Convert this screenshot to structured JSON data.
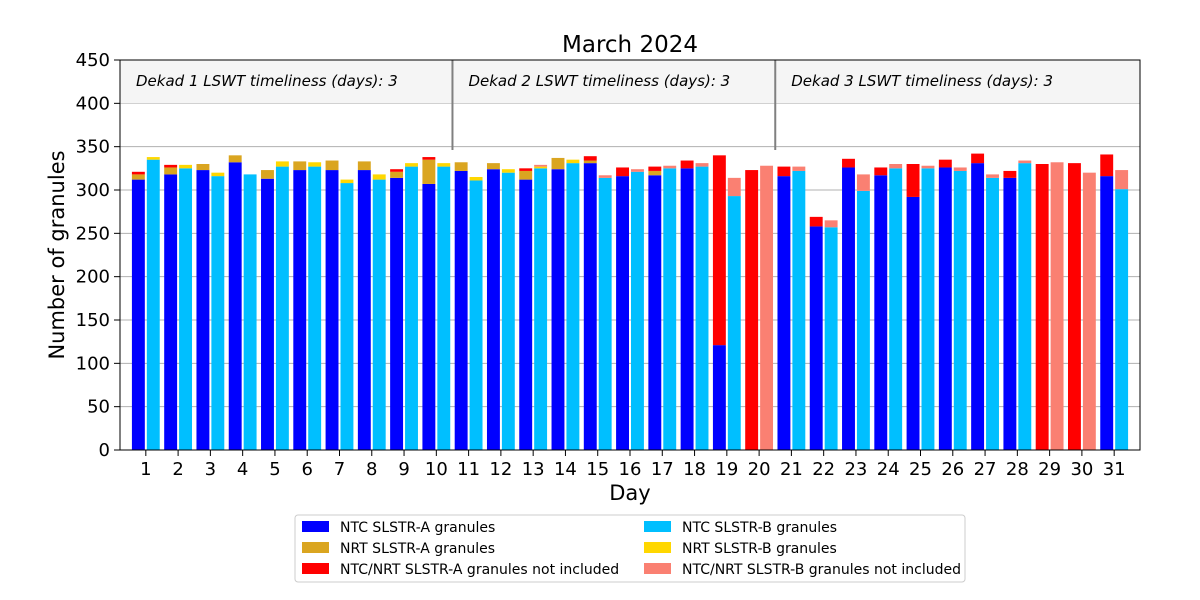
{
  "chart_data": {
    "type": "bar",
    "title": "March 2024",
    "xlabel": "Day",
    "ylabel": "Number of granules",
    "ylim": [
      0,
      450
    ],
    "yticks": [
      0,
      50,
      100,
      150,
      200,
      250,
      300,
      350,
      400,
      450
    ],
    "grid": true,
    "legend_position": "bottom",
    "categories": [
      "1",
      "2",
      "3",
      "4",
      "5",
      "6",
      "7",
      "8",
      "9",
      "10",
      "11",
      "12",
      "13",
      "14",
      "15",
      "16",
      "17",
      "18",
      "19",
      "20",
      "21",
      "22",
      "23",
      "24",
      "25",
      "26",
      "27",
      "28",
      "29",
      "30",
      "31"
    ],
    "dekads": [
      {
        "label": "Dekad 1 LSWT timeliness (days): 3",
        "start_day": 1,
        "end_day": 10
      },
      {
        "label": "Dekad 2 LSWT timeliness (days): 3",
        "start_day": 11,
        "end_day": 20
      },
      {
        "label": "Dekad 3 LSWT timeliness (days): 3",
        "start_day": 21,
        "end_day": 31
      }
    ],
    "series": [
      {
        "name": "NTC SLSTR-A granules",
        "group": "A",
        "color": "#0000ff",
        "values": [
          312,
          318,
          323,
          332,
          313,
          323,
          323,
          323,
          314,
          307,
          322,
          324,
          312,
          324,
          331,
          316,
          317,
          325,
          121,
          0,
          316,
          258,
          326,
          317,
          292,
          326,
          331,
          314,
          0,
          0,
          316
        ]
      },
      {
        "name": "NRT SLSTR-A granules",
        "group": "A",
        "color": "#daa520",
        "values": [
          6,
          8,
          7,
          8,
          10,
          10,
          11,
          10,
          7,
          28,
          10,
          7,
          10,
          13,
          3,
          0,
          5,
          0,
          0,
          0,
          0,
          0,
          0,
          0,
          0,
          0,
          0,
          0,
          0,
          0,
          0
        ]
      },
      {
        "name": "NTC/NRT SLSTR-A granules not included",
        "group": "A",
        "color": "#ff0000",
        "values": [
          3,
          3,
          0,
          0,
          0,
          0,
          0,
          0,
          3,
          3,
          0,
          0,
          3,
          0,
          5,
          10,
          5,
          9,
          219,
          323,
          11,
          11,
          10,
          9,
          38,
          9,
          11,
          8,
          330,
          331,
          25
        ]
      },
      {
        "name": "NTC SLSTR-B granules",
        "group": "B",
        "color": "#00bfff",
        "values": [
          335,
          325,
          316,
          318,
          327,
          327,
          308,
          312,
          327,
          327,
          311,
          320,
          325,
          331,
          314,
          321,
          325,
          327,
          293,
          0,
          322,
          257,
          299,
          325,
          325,
          322,
          314,
          331,
          0,
          0,
          301
        ]
      },
      {
        "name": "NRT SLSTR-B granules",
        "group": "B",
        "color": "#ffd700",
        "values": [
          3,
          4,
          4,
          0,
          6,
          5,
          4,
          6,
          4,
          4,
          4,
          4,
          2,
          4,
          0,
          0,
          0,
          0,
          0,
          0,
          0,
          0,
          0,
          0,
          0,
          0,
          0,
          0,
          0,
          0,
          0
        ]
      },
      {
        "name": "NTC/NRT SLSTR-B granules not included",
        "group": "B",
        "color": "#fa8072",
        "values": [
          0,
          0,
          0,
          0,
          0,
          0,
          0,
          0,
          0,
          0,
          0,
          0,
          2,
          0,
          3,
          3,
          3,
          4,
          21,
          328,
          5,
          8,
          19,
          5,
          3,
          4,
          4,
          3,
          332,
          320,
          22
        ]
      }
    ]
  }
}
